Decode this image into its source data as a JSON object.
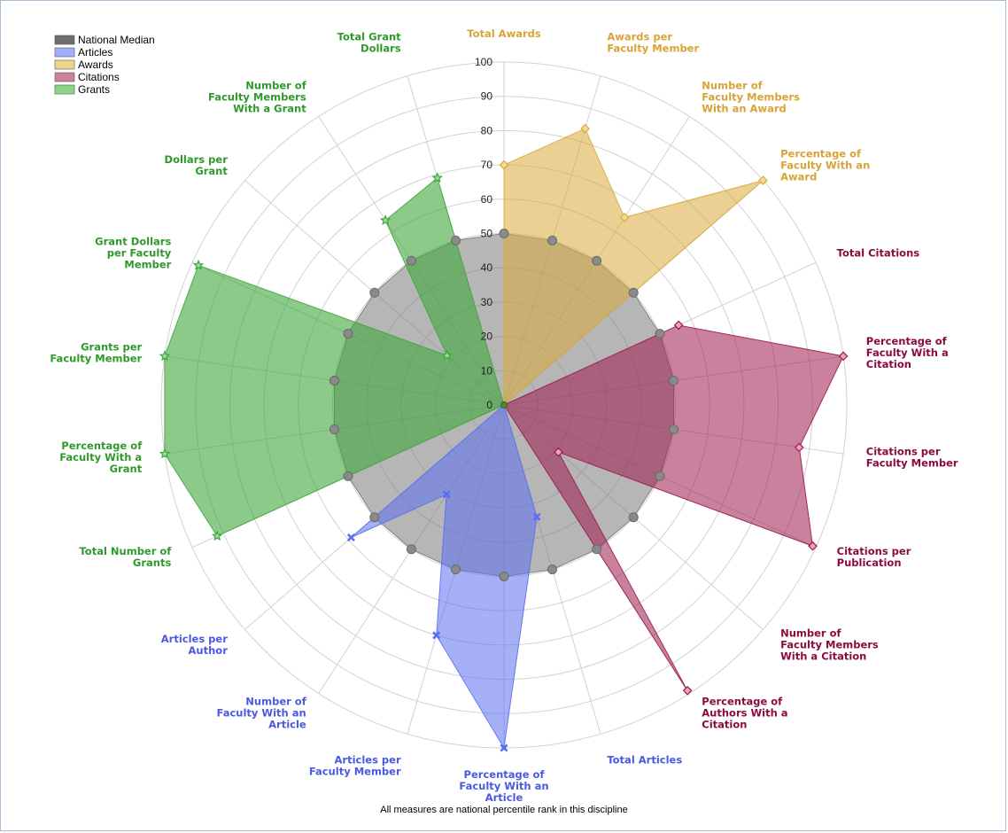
{
  "chart_data": {
    "type": "radar",
    "footnote": "All measures are national percentile rank in this discipline",
    "rlim": [
      0,
      100
    ],
    "ticks": [
      0,
      10,
      20,
      30,
      40,
      50,
      60,
      70,
      80,
      90,
      100
    ],
    "categories": [
      {
        "label": "Total Awards",
        "group": "Awards"
      },
      {
        "label": "Awards per Faculty Member",
        "group": "Awards"
      },
      {
        "label": "Number of Faculty Members With an Award",
        "group": "Awards"
      },
      {
        "label": "Percentage of Faculty With an Award",
        "group": "Awards"
      },
      {
        "label": "Total Citations",
        "group": "Citations"
      },
      {
        "label": "Percentage of Faculty With a Citation",
        "group": "Citations"
      },
      {
        "label": "Citations per Faculty Member",
        "group": "Citations"
      },
      {
        "label": "Citations per Publication",
        "group": "Citations"
      },
      {
        "label": "Number of Faculty Members With a Citation",
        "group": "Citations"
      },
      {
        "label": "Percentage of Authors With a Citation",
        "group": "Citations"
      },
      {
        "label": "Total Articles",
        "group": "Articles"
      },
      {
        "label": "Percentage of Faculty With an Article",
        "group": "Articles"
      },
      {
        "label": "Articles per Faculty Member",
        "group": "Articles"
      },
      {
        "label": "Number of Faculty With an Article",
        "group": "Articles"
      },
      {
        "label": "Articles per Author",
        "group": "Articles"
      },
      {
        "label": "Total Number of Grants",
        "group": "Grants"
      },
      {
        "label": "Percentage of Faculty With a Grant",
        "group": "Grants"
      },
      {
        "label": "Grants per Faculty Member",
        "group": "Grants"
      },
      {
        "label": "Grant Dollars per Faculty Member",
        "group": "Grants"
      },
      {
        "label": "Dollars per Grant",
        "group": "Grants"
      },
      {
        "label": "Number of Faculty Members With a Grant",
        "group": "Grants"
      },
      {
        "label": "Total Grant Dollars",
        "group": "Grants"
      }
    ],
    "label_lines": [
      [
        "Total Awards"
      ],
      [
        "Awards per",
        "Faculty Member"
      ],
      [
        "Number of",
        "Faculty Members",
        "With an Award"
      ],
      [
        "Percentage of",
        "Faculty With an",
        "Award"
      ],
      [
        "Total Citations"
      ],
      [
        "Percentage of",
        "Faculty With a",
        "Citation"
      ],
      [
        "Citations per",
        "Faculty Member"
      ],
      [
        "Citations per",
        "Publication"
      ],
      [
        "Number of",
        "Faculty Members",
        "With a Citation"
      ],
      [
        "Percentage of",
        "Authors With a",
        "Citation"
      ],
      [
        "Total Articles"
      ],
      [
        "Percentage of",
        "Faculty With an",
        "Article"
      ],
      [
        "Articles per",
        "Faculty Member"
      ],
      [
        "Number of",
        "Faculty With an",
        "Article"
      ],
      [
        "Articles per",
        "Author"
      ],
      [
        "Total Number of",
        "Grants"
      ],
      [
        "Percentage of",
        "Faculty With a",
        "Grant"
      ],
      [
        "Grants per",
        "Faculty Member"
      ],
      [
        "Grant Dollars",
        "per Faculty",
        "Member"
      ],
      [
        "Dollars per",
        "Grant"
      ],
      [
        "Number of",
        "Faculty Members",
        "With a Grant"
      ],
      [
        "Total Grant",
        "Dollars"
      ]
    ],
    "series": [
      {
        "name": "National Median",
        "color": "#7a7a7a",
        "values": [
          50,
          50,
          50,
          50,
          50,
          50,
          50,
          50,
          50,
          50,
          50,
          50,
          50,
          50,
          50,
          50,
          50,
          50,
          50,
          50,
          50,
          50
        ]
      },
      {
        "name": "Awards",
        "color": "#d9a93a",
        "values": [
          70,
          84,
          65,
          100,
          0,
          0,
          0,
          0,
          0,
          0,
          0,
          0,
          0,
          0,
          0,
          0,
          0,
          0,
          0,
          0,
          0,
          0
        ]
      },
      {
        "name": "Citations",
        "color": "#9c1a4e",
        "values": [
          0,
          0,
          0,
          0,
          56,
          100,
          87,
          99,
          21,
          99,
          0,
          0,
          0,
          0,
          0,
          0,
          0,
          0,
          0,
          0,
          0,
          0
        ]
      },
      {
        "name": "Articles",
        "color": "#5b6ff0",
        "values": [
          0,
          0,
          0,
          0,
          0,
          0,
          0,
          0,
          0,
          0,
          34,
          100,
          70,
          31,
          59,
          0,
          0,
          0,
          0,
          0,
          0,
          0
        ]
      },
      {
        "name": "Grants",
        "color": "#3fa63c",
        "values": [
          0,
          0,
          0,
          0,
          0,
          0,
          0,
          0,
          0,
          0,
          0,
          0,
          0,
          0,
          0,
          92,
          100,
          100,
          98,
          22,
          64,
          69
        ]
      }
    ],
    "legend": [
      {
        "name": "National Median",
        "color": "#6e6e6e"
      },
      {
        "name": "Articles",
        "color": "#a3aefc"
      },
      {
        "name": "Awards",
        "color": "#edd58a"
      },
      {
        "name": "Citations",
        "color": "#cf7f9c"
      },
      {
        "name": "Grants",
        "color": "#8dd48a"
      }
    ],
    "group_colors": {
      "Awards": "#d8a337",
      "Citations": "#8c0a40",
      "Articles": "#4a5ae0",
      "Grants": "#2e9a2b"
    }
  }
}
